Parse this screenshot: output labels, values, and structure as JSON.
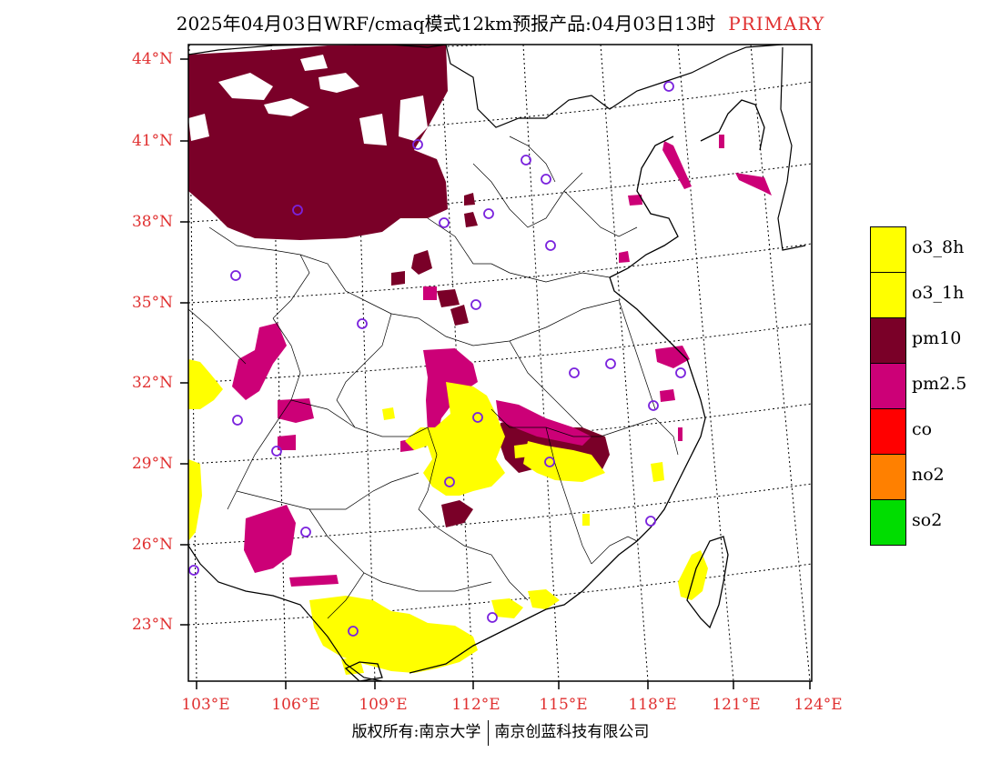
{
  "title": {
    "main": "2025年04月03日WRF/cmaq模式12km预报产品:04月03日13时",
    "tag": "PRIMARY"
  },
  "map": {
    "lat_labels": [
      "44°N",
      "41°N",
      "38°N",
      "35°N",
      "32°N",
      "29°N",
      "26°N",
      "23°N"
    ],
    "lon_labels": [
      "103°E",
      "106°E",
      "109°E",
      "112°E",
      "115°E",
      "118°E",
      "121°E",
      "124°E"
    ],
    "lat_range": [
      21.2,
      44.4
    ],
    "lon_range": [
      102.7,
      124.0
    ],
    "colors": {
      "o3_8h": "#ffff00",
      "pm10": "#7a0028",
      "pm25": "#cc0077",
      "station_marker": "#7a22dd",
      "axis_label": "#e03030"
    }
  },
  "legend": {
    "items": [
      {
        "label": "o3_8h",
        "color": "#ffff00"
      },
      {
        "label": "o3_1h",
        "color": "#ffff00"
      },
      {
        "label": "pm10",
        "color": "#7a0028"
      },
      {
        "label": "pm2.5",
        "color": "#cc0077"
      },
      {
        "label": "co",
        "color": "#ff0000"
      },
      {
        "label": "no2",
        "color": "#ff8000"
      },
      {
        "label": "so2",
        "color": "#00dd00"
      }
    ]
  },
  "footer": {
    "copyright_left": "版权所有:南京大学",
    "copyright_right": "南京创蓝科技有限公司"
  }
}
